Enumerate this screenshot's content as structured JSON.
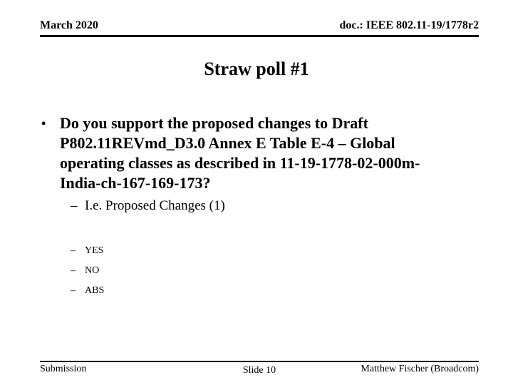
{
  "slide": {
    "header": {
      "date": "March 2020",
      "doc": "doc.: IEEE 802.11-19/1778r2"
    },
    "title": "Straw poll #1",
    "question": {
      "bullet": "•",
      "lines": [
        "Do you support the proposed changes to Draft",
        "P802.11REVmd_D3.0 Annex E Table E-4 – Global",
        "operating classes as described in 11-19-1778-02-000m-",
        "India-ch-167-169-173?"
      ]
    },
    "sub_bullet": {
      "marker": "–",
      "text": "I.e. Proposed Changes (1)"
    },
    "options": [
      {
        "marker": "–",
        "label": "YES"
      },
      {
        "marker": "–",
        "label": "NO"
      },
      {
        "marker": "–",
        "label": "ABS"
      }
    ],
    "footer": {
      "left": "Submission",
      "center": "Slide 10",
      "right": "Matthew Fischer (Broadcom)"
    },
    "colors": {
      "background": "#ffffff",
      "text": "#000000",
      "rule": "#000000"
    }
  }
}
